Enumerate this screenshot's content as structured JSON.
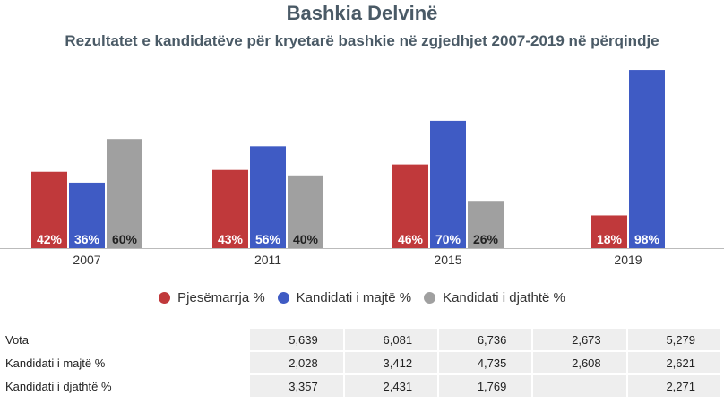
{
  "header": {
    "title": "Bashkia Delvinë",
    "subtitle": "Rezultatet e kandidatëve për kryetarë bashkie në zgjedhjet 2007-2019 në përqindje"
  },
  "colors": {
    "participation": "#c0393b",
    "left": "#3f5bc4",
    "right": "#a0a0a0"
  },
  "legend": [
    {
      "label": "Pjesëmarrja %",
      "color": "#c0393b"
    },
    {
      "label": "Kandidati i majtë %",
      "color": "#3f5bc4"
    },
    {
      "label": "Kandidati i djathtë %",
      "color": "#a0a0a0"
    }
  ],
  "chart_data": {
    "type": "bar",
    "title": "Bashkia Delvinë",
    "subtitle": "Rezultatet e kandidatëve për kryetarë bashkie në zgjedhjet 2007-2019 në përqindje",
    "categories": [
      "2007",
      "2011",
      "2015",
      "2019"
    ],
    "ylim": [
      0,
      100
    ],
    "grid": false,
    "legend_position": "bottom",
    "series": [
      {
        "name": "Pjesëmarrja %",
        "color": "#c0393b",
        "values": [
          42,
          43,
          46,
          18
        ],
        "labels": [
          "42%",
          "43%",
          "46%",
          "18%"
        ]
      },
      {
        "name": "Kandidati i majtë %",
        "color": "#3f5bc4",
        "values": [
          36,
          56,
          70,
          98
        ],
        "labels": [
          "36%",
          "56%",
          "70%",
          "98%"
        ]
      },
      {
        "name": "Kandidati i djathtë %",
        "color": "#a0a0a0",
        "values": [
          60,
          40,
          26,
          null
        ],
        "labels": [
          "60%",
          "40%",
          "26%",
          ""
        ]
      }
    ]
  },
  "table": {
    "rows": [
      {
        "label": "Vota",
        "values": [
          "5,639",
          "6,081",
          "6,736",
          "2,673",
          "5,279"
        ]
      },
      {
        "label": "Kandidati i majtë %",
        "values": [
          "2,028",
          "3,412",
          "4,735",
          "2,608",
          "2,621"
        ]
      },
      {
        "label": "Kandidati i djathtë %",
        "values": [
          "3,357",
          "2,431",
          "1,769",
          "",
          "2,271"
        ]
      }
    ]
  }
}
